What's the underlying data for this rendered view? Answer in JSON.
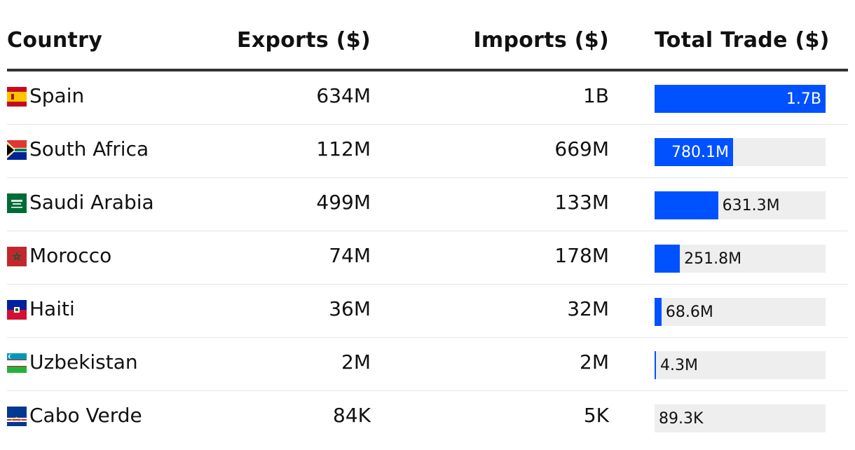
{
  "table": {
    "headers": {
      "country": "Country",
      "exports": "Exports ($)",
      "imports": "Imports ($)",
      "total": "Total Trade ($)"
    },
    "rows": [
      {
        "country": "Spain",
        "flag": "spain-flag-icon",
        "exports": "634M",
        "imports": "1B",
        "total_label": "1.7B"
      },
      {
        "country": "South Africa",
        "flag": "south-africa-flag-icon",
        "exports": "112M",
        "imports": "669M",
        "total_label": "780.1M"
      },
      {
        "country": "Saudi Arabia",
        "flag": "saudi-arabia-flag-icon",
        "exports": "499M",
        "imports": "133M",
        "total_label": "631.3M"
      },
      {
        "country": "Morocco",
        "flag": "morocco-flag-icon",
        "exports": "74M",
        "imports": "178M",
        "total_label": "251.8M"
      },
      {
        "country": "Haiti",
        "flag": "haiti-flag-icon",
        "exports": "36M",
        "imports": "32M",
        "total_label": "68.6M"
      },
      {
        "country": "Uzbekistan",
        "flag": "uzbekistan-flag-icon",
        "exports": "2M",
        "imports": "2M",
        "total_label": "4.3M"
      },
      {
        "country": "Cabo Verde",
        "flag": "cabo-verde-flag-icon",
        "exports": "84K",
        "imports": "5K",
        "total_label": "89.3K"
      }
    ]
  },
  "chart_data": {
    "type": "bar",
    "categories": [
      "Spain",
      "South Africa",
      "Saudi Arabia",
      "Morocco",
      "Haiti",
      "Uzbekistan",
      "Cabo Verde"
    ],
    "values": [
      1700000000,
      780100000,
      631300000,
      251800000,
      68600000,
      4300000,
      89300
    ],
    "xlim": [
      0,
      1700000000
    ],
    "colors": {
      "bar": "#0051ff",
      "track": "#eeeeee"
    }
  }
}
